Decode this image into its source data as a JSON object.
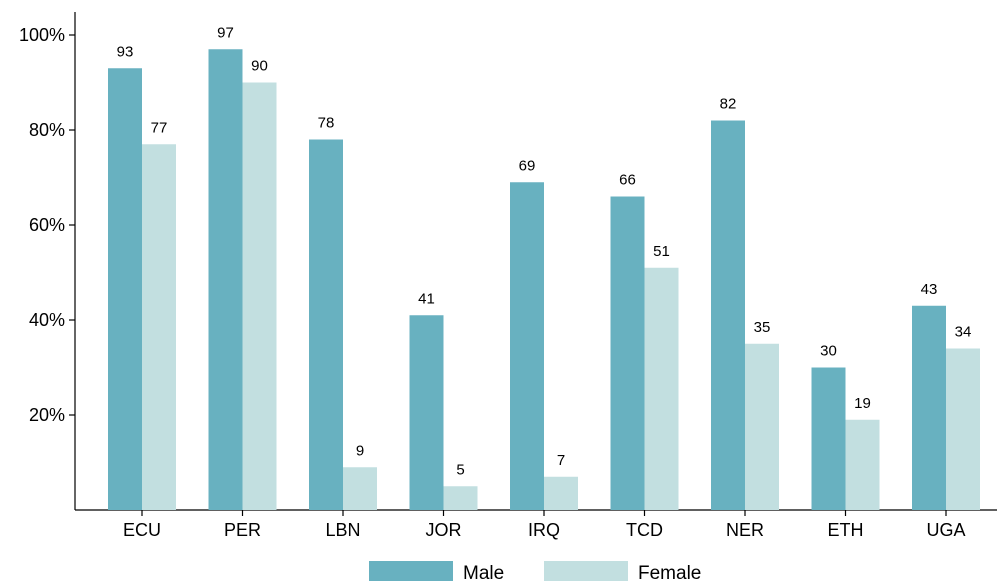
{
  "chart_data": {
    "type": "bar",
    "categories": [
      "ECU",
      "PER",
      "LBN",
      "JOR",
      "IRQ",
      "TCD",
      "NER",
      "ETH",
      "UGA"
    ],
    "series": [
      {
        "name": "Male",
        "values": [
          93,
          97,
          78,
          41,
          69,
          66,
          82,
          30,
          43
        ],
        "color": "#68b1c0"
      },
      {
        "name": "Female",
        "values": [
          77,
          90,
          9,
          5,
          7,
          51,
          35,
          19,
          34
        ],
        "color": "#c2dfe0"
      }
    ],
    "y_ticks": [
      20,
      40,
      60,
      80,
      100
    ],
    "y_tick_labels": [
      "20%",
      "40%",
      "60%",
      "80%",
      "100%"
    ],
    "ylim": [
      0,
      100
    ],
    "data_labels": true,
    "grid": false,
    "legend": "bottom"
  }
}
